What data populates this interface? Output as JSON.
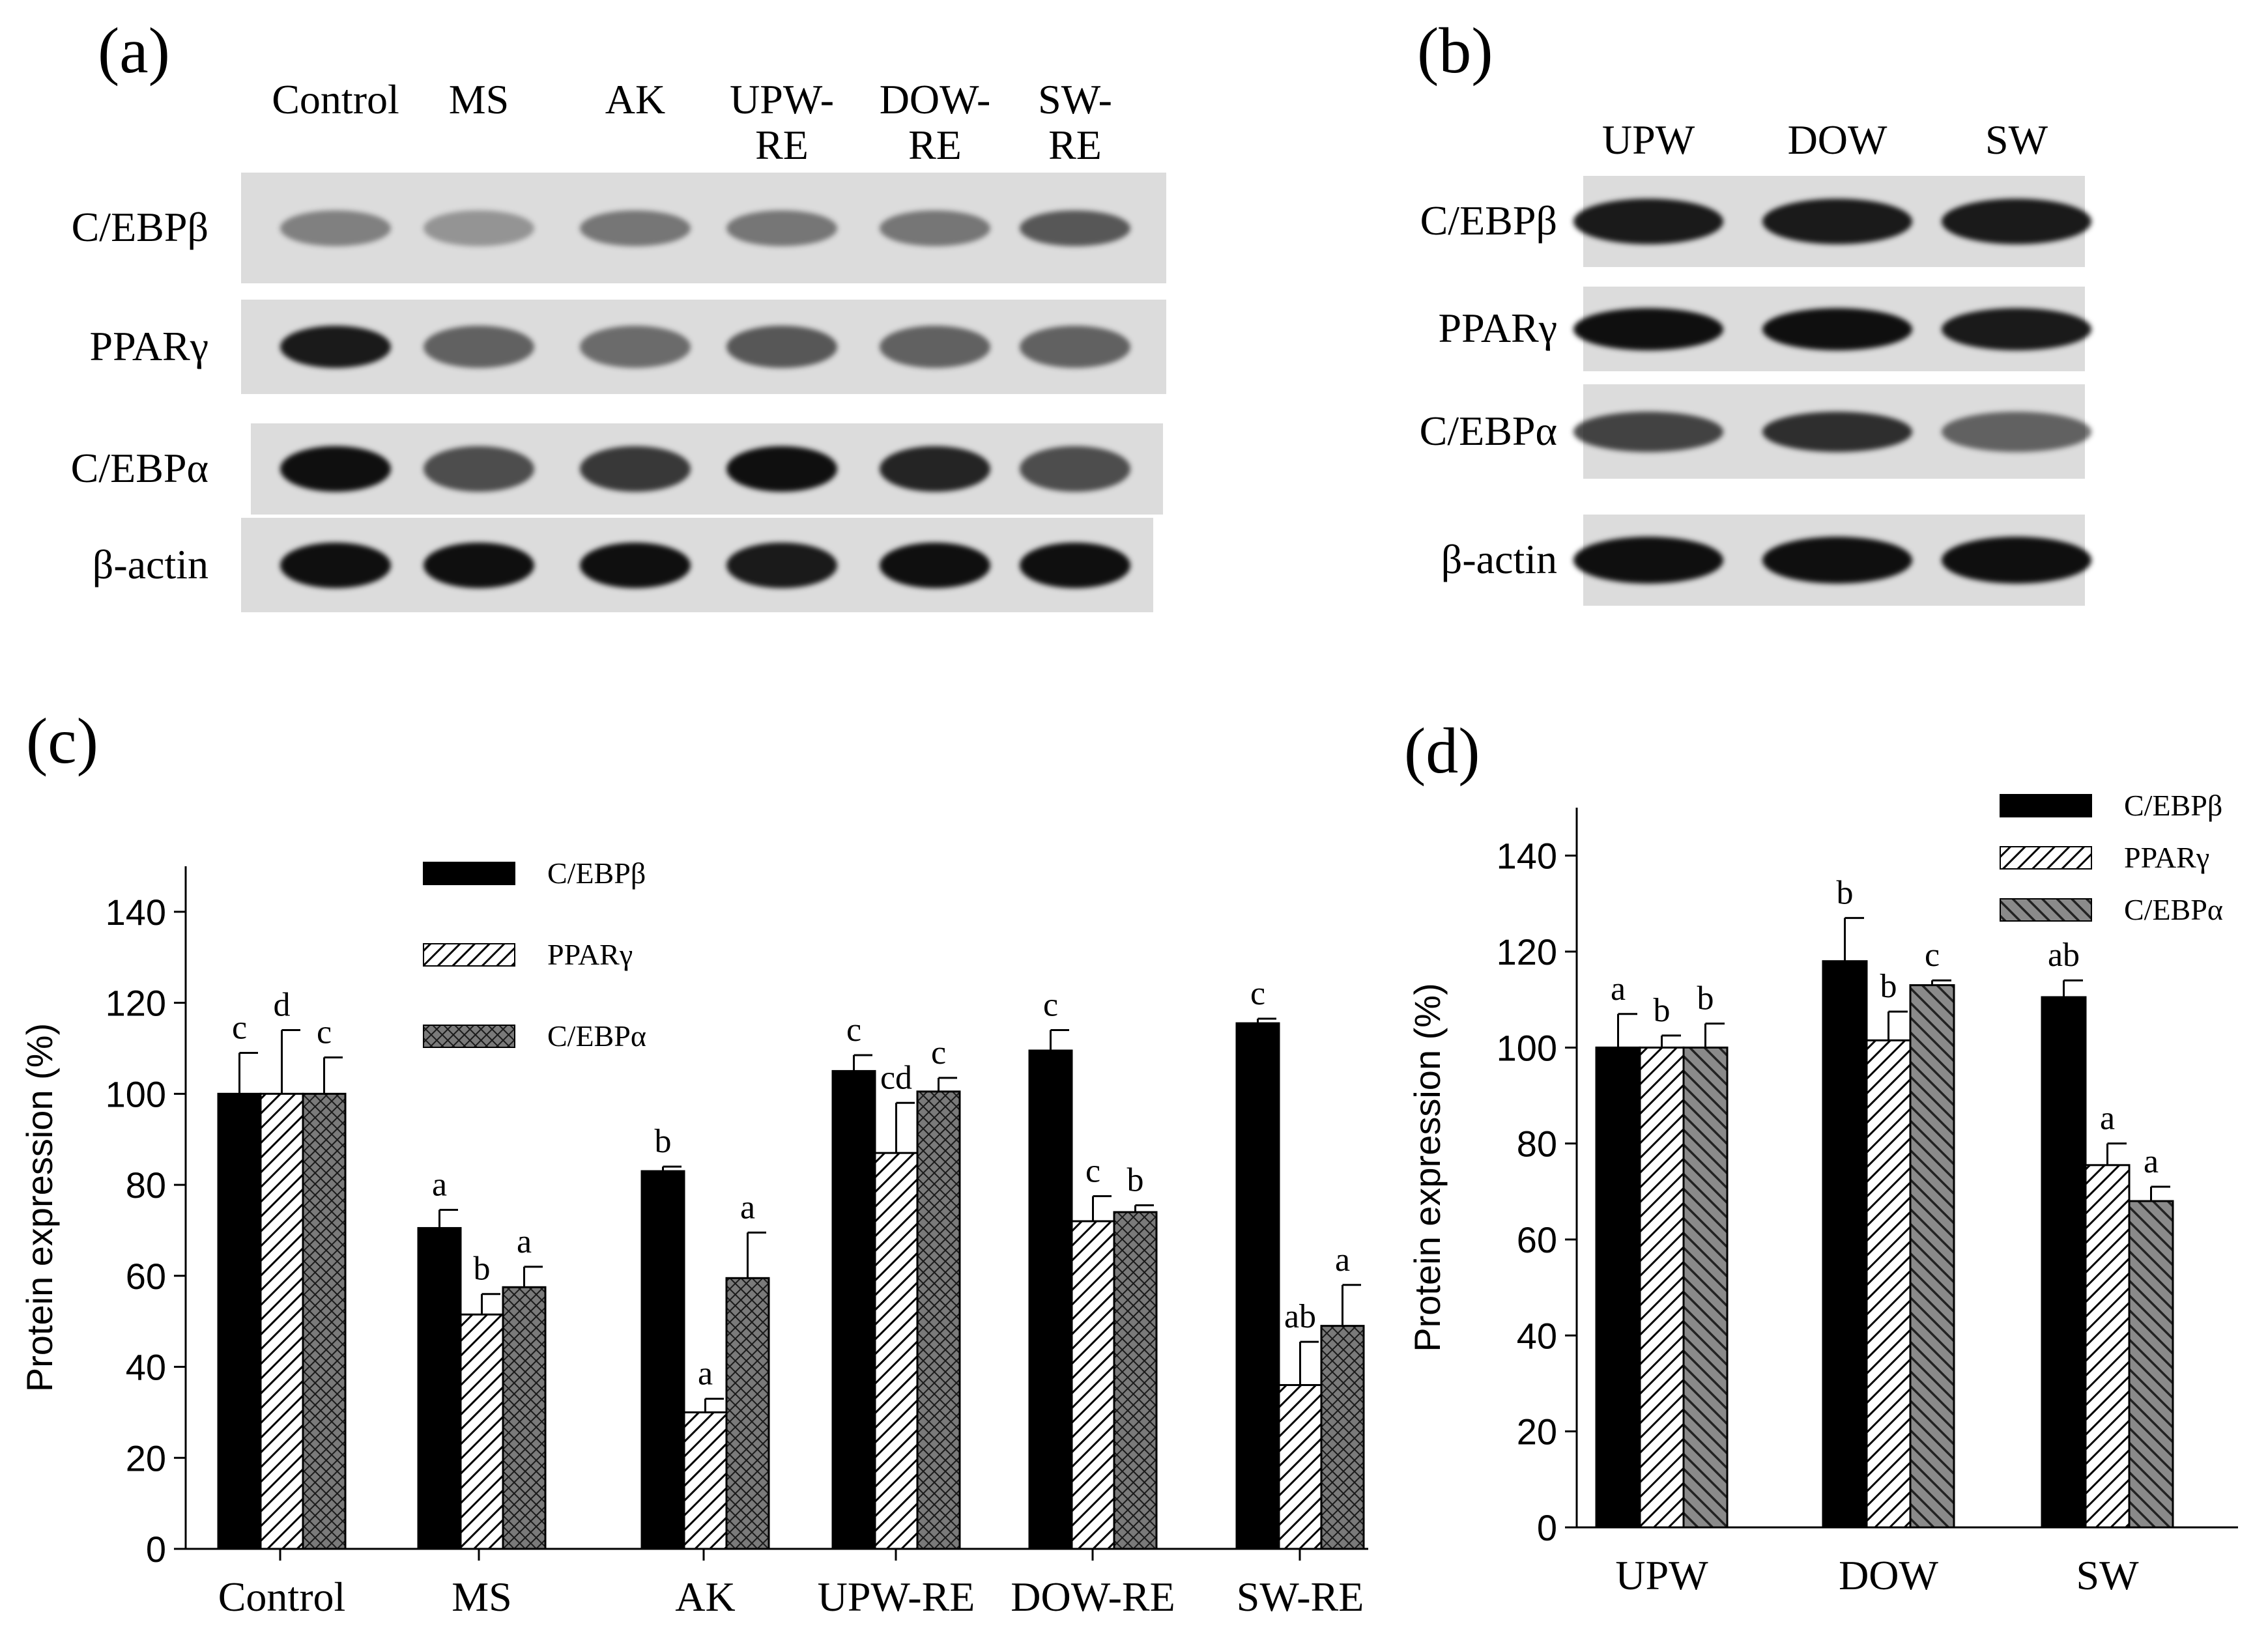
{
  "panels": {
    "a": "(a)",
    "b": "(b)",
    "c": "(c)",
    "d": "(d)"
  },
  "blot_a": {
    "lanes": [
      {
        "line1": "Control",
        "line2": ""
      },
      {
        "line1": "MS",
        "line2": ""
      },
      {
        "line1": "AK",
        "line2": ""
      },
      {
        "line1": "UPW-",
        "line2": "RE"
      },
      {
        "line1": "DOW-",
        "line2": "RE"
      },
      {
        "line1": "SW-",
        "line2": "RE"
      }
    ],
    "rows": [
      "C/EBPβ",
      "PPARγ",
      "C/EBPα",
      "β-actin"
    ]
  },
  "blot_b": {
    "lanes": [
      "UPW",
      "DOW",
      "SW"
    ],
    "rows": [
      "C/EBPβ",
      "PPARγ",
      "C/EBPα",
      "β-actin"
    ]
  },
  "chart_data": [
    {
      "type": "bar",
      "panel": "(c)",
      "ylabel": "Protein expression (%)",
      "xlabel": "",
      "ylim": [
        0,
        150
      ],
      "yticks": [
        0,
        20,
        40,
        60,
        80,
        100,
        120,
        140
      ],
      "categories": [
        "Control",
        "MS",
        "AK",
        "UPW-RE",
        "DOW-RE",
        "SW-RE"
      ],
      "legend_position": "top-center",
      "series": [
        {
          "name": "C/EBPβ",
          "fill": "solid-black",
          "values": [
            100,
            70.5,
            83,
            105,
            109.5,
            115.5
          ],
          "errors": [
            9,
            4,
            1,
            3.5,
            4.5,
            1
          ],
          "letters": [
            "c",
            "a",
            "b",
            "c",
            "c",
            "c"
          ]
        },
        {
          "name": "PPARγ",
          "fill": "diagonal-hatch",
          "values": [
            100,
            51.5,
            30,
            87,
            72,
            36
          ],
          "errors": [
            14,
            4.5,
            3,
            11,
            5.5,
            9.5
          ],
          "letters": [
            "d",
            "b",
            "a",
            "cd",
            "c",
            "ab"
          ]
        },
        {
          "name": "C/EBPα",
          "fill": "crosshatch-dark",
          "values": [
            100,
            57.5,
            59.5,
            100.5,
            74,
            49
          ],
          "errors": [
            8,
            4.5,
            10,
            3,
            1.5,
            9
          ],
          "letters": [
            "c",
            "a",
            "a",
            "c",
            "b",
            "a"
          ]
        }
      ]
    },
    {
      "type": "bar",
      "panel": "(d)",
      "ylabel": "Protein expression (%)",
      "xlabel": "",
      "ylim": [
        0,
        150
      ],
      "yticks": [
        0,
        20,
        40,
        60,
        80,
        100,
        120,
        140
      ],
      "categories": [
        "UPW",
        "DOW",
        "SW"
      ],
      "legend_position": "top-right",
      "series": [
        {
          "name": "C/EBPβ",
          "fill": "solid-black",
          "values": [
            100,
            118,
            110.5
          ],
          "errors": [
            7,
            9,
            3.5
          ],
          "letters": [
            "a",
            "b",
            "ab"
          ]
        },
        {
          "name": "PPARγ",
          "fill": "diagonal-hatch",
          "values": [
            100,
            101.5,
            75.5
          ],
          "errors": [
            2.5,
            6,
            4.5
          ],
          "letters": [
            "b",
            "b",
            "a"
          ]
        },
        {
          "name": "C/EBPα",
          "fill": "diagonal-dark",
          "values": [
            100,
            113,
            68
          ],
          "errors": [
            5,
            1,
            3
          ],
          "letters": [
            "b",
            "c",
            "a"
          ]
        }
      ]
    }
  ]
}
